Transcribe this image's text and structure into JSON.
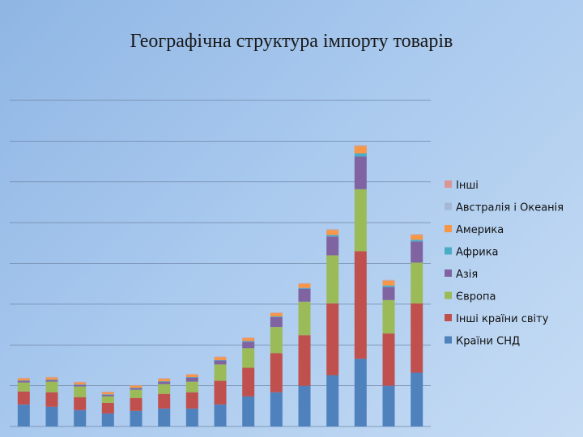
{
  "chart_data": {
    "type": "bar",
    "stacked": true,
    "title": "Географічна структура імпорту товарів",
    "xlabel": "",
    "ylabel": "",
    "ylim": [
      0,
      40
    ],
    "gridlines": true,
    "legend_position": "right",
    "categories": [
      "",
      "",
      "",
      "",
      "",
      "",
      "",
      "",
      "",
      "",
      "",
      "",
      "",
      "",
      ""
    ],
    "series": [
      {
        "name": "Країни СНД",
        "color": "#4f81bd",
        "values": [
          2.7,
          2.4,
          2.0,
          1.6,
          1.9,
          2.2,
          2.2,
          2.7,
          3.7,
          4.2,
          5.0,
          6.3,
          8.3,
          5.0,
          6.6
        ]
      },
      {
        "name": "Інші країни світу",
        "color": "#c0504d",
        "values": [
          1.6,
          1.8,
          1.6,
          1.3,
          1.6,
          1.8,
          2.0,
          2.9,
          3.5,
          4.8,
          6.2,
          8.8,
          13.2,
          6.4,
          8.5
        ]
      },
      {
        "name": "Європа",
        "color": "#9bbb59",
        "values": [
          1.1,
          1.3,
          1.3,
          0.8,
          1.0,
          1.2,
          1.3,
          2.0,
          2.4,
          3.2,
          4.1,
          5.9,
          7.6,
          4.1,
          5.0
        ]
      },
      {
        "name": "Азія",
        "color": "#8064a2",
        "values": [
          0.2,
          0.2,
          0.2,
          0.2,
          0.2,
          0.3,
          0.5,
          0.5,
          0.8,
          1.2,
          1.6,
          2.3,
          4.0,
          1.6,
          2.6
        ]
      },
      {
        "name": "Африка",
        "color": "#4bacc6",
        "values": [
          0.05,
          0.05,
          0.05,
          0.05,
          0.05,
          0.05,
          0.05,
          0.05,
          0.1,
          0.1,
          0.1,
          0.2,
          0.4,
          0.2,
          0.2
        ]
      },
      {
        "name": "Америка",
        "color": "#f79646",
        "values": [
          0.25,
          0.25,
          0.25,
          0.25,
          0.25,
          0.3,
          0.3,
          0.35,
          0.35,
          0.4,
          0.5,
          0.6,
          0.9,
          0.6,
          0.6
        ]
      },
      {
        "name": "Австралія і Океанія",
        "color": "#a5b9d6",
        "values": [
          0.02,
          0.02,
          0.02,
          0.02,
          0.02,
          0.02,
          0.02,
          0.02,
          0.02,
          0.03,
          0.03,
          0.05,
          0.05,
          0.04,
          0.04
        ]
      },
      {
        "name": "Інші",
        "color": "#d99694",
        "values": [
          0.05,
          0.05,
          0.05,
          0.05,
          0.05,
          0.05,
          0.05,
          0.05,
          0.05,
          0.05,
          0.05,
          0.05,
          0.05,
          0.05,
          0.05
        ]
      }
    ]
  }
}
